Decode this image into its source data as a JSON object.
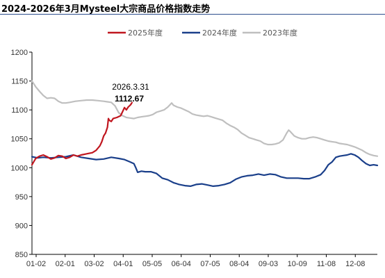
{
  "chart_data": {
    "type": "line",
    "title": "2024-2026年3月Mysteel大宗商品价格指数走势",
    "ylim": [
      850,
      1200
    ],
    "yticks": [
      850,
      900,
      950,
      1000,
      1050,
      1100,
      1150,
      1200
    ],
    "xtick_labels": [
      "01-02",
      "02-01",
      "03-02",
      "04-01",
      "05-05",
      "06-04",
      "07-05",
      "08-04",
      "09-03",
      "10-09",
      "11-08",
      "12-08"
    ],
    "x_range": [
      0,
      366
    ],
    "legend_position": "top",
    "annotation": {
      "date": "2026.3.31",
      "value": "1112.67"
    },
    "series": [
      {
        "name": "2025年度",
        "color": "#c0161f",
        "points": [
          [
            0,
            1005
          ],
          [
            4,
            1016
          ],
          [
            8,
            1020
          ],
          [
            12,
            1022
          ],
          [
            16,
            1019
          ],
          [
            20,
            1015
          ],
          [
            24,
            1017
          ],
          [
            28,
            1021
          ],
          [
            32,
            1020
          ],
          [
            36,
            1016
          ],
          [
            40,
            1018
          ],
          [
            44,
            1022
          ],
          [
            48,
            1020
          ],
          [
            52,
            1022
          ],
          [
            58,
            1024
          ],
          [
            64,
            1026
          ],
          [
            68,
            1030
          ],
          [
            72,
            1038
          ],
          [
            74,
            1045
          ],
          [
            76,
            1055
          ],
          [
            78,
            1060
          ],
          [
            80,
            1070
          ],
          [
            81,
            1085
          ],
          [
            82,
            1082
          ],
          [
            84,
            1080
          ],
          [
            86,
            1085
          ],
          [
            90,
            1087
          ],
          [
            94,
            1090
          ],
          [
            96,
            1097
          ],
          [
            98,
            1104
          ],
          [
            100,
            1100
          ],
          [
            102,
            1105
          ],
          [
            104,
            1108
          ],
          [
            105,
            1110
          ],
          [
            106,
            1112.67
          ]
        ]
      },
      {
        "name": "2024年度",
        "color": "#1a3f8a",
        "points": [
          [
            0,
            1019
          ],
          [
            6,
            1017
          ],
          [
            12,
            1018
          ],
          [
            20,
            1017
          ],
          [
            28,
            1018
          ],
          [
            36,
            1019
          ],
          [
            44,
            1022
          ],
          [
            52,
            1018
          ],
          [
            60,
            1016
          ],
          [
            68,
            1014
          ],
          [
            76,
            1015
          ],
          [
            84,
            1018
          ],
          [
            92,
            1016
          ],
          [
            98,
            1014
          ],
          [
            104,
            1010
          ],
          [
            108,
            1007
          ],
          [
            110,
            1000
          ],
          [
            112,
            992
          ],
          [
            116,
            994
          ],
          [
            120,
            993
          ],
          [
            126,
            993
          ],
          [
            132,
            990
          ],
          [
            138,
            982
          ],
          [
            144,
            979
          ],
          [
            150,
            974
          ],
          [
            156,
            971
          ],
          [
            162,
            969
          ],
          [
            168,
            968
          ],
          [
            174,
            971
          ],
          [
            180,
            972
          ],
          [
            186,
            970
          ],
          [
            192,
            968
          ],
          [
            198,
            969
          ],
          [
            204,
            971
          ],
          [
            210,
            974
          ],
          [
            216,
            980
          ],
          [
            222,
            984
          ],
          [
            228,
            986
          ],
          [
            234,
            987
          ],
          [
            240,
            989
          ],
          [
            246,
            987
          ],
          [
            252,
            989
          ],
          [
            258,
            988
          ],
          [
            264,
            984
          ],
          [
            270,
            982
          ],
          [
            276,
            982
          ],
          [
            282,
            982
          ],
          [
            288,
            981
          ],
          [
            294,
            981
          ],
          [
            300,
            984
          ],
          [
            306,
            988
          ],
          [
            310,
            995
          ],
          [
            314,
            1005
          ],
          [
            318,
            1010
          ],
          [
            322,
            1018
          ],
          [
            326,
            1020
          ],
          [
            330,
            1021
          ],
          [
            334,
            1022
          ],
          [
            338,
            1024
          ],
          [
            342,
            1022
          ],
          [
            346,
            1018
          ],
          [
            350,
            1012
          ],
          [
            354,
            1007
          ],
          [
            358,
            1004
          ],
          [
            362,
            1005
          ],
          [
            366,
            1004
          ]
        ]
      },
      {
        "name": "2023年度",
        "color": "#bfbfbf",
        "points": [
          [
            0,
            1150
          ],
          [
            4,
            1140
          ],
          [
            8,
            1132
          ],
          [
            12,
            1125
          ],
          [
            16,
            1120
          ],
          [
            20,
            1121
          ],
          [
            24,
            1120
          ],
          [
            28,
            1115
          ],
          [
            32,
            1112
          ],
          [
            36,
            1112
          ],
          [
            40,
            1113
          ],
          [
            46,
            1115
          ],
          [
            52,
            1116
          ],
          [
            58,
            1117
          ],
          [
            64,
            1117
          ],
          [
            70,
            1116
          ],
          [
            76,
            1115
          ],
          [
            80,
            1114
          ],
          [
            84,
            1113
          ],
          [
            88,
            1107
          ],
          [
            92,
            1095
          ],
          [
            96,
            1090
          ],
          [
            100,
            1087
          ],
          [
            104,
            1086
          ],
          [
            108,
            1085
          ],
          [
            112,
            1087
          ],
          [
            116,
            1088
          ],
          [
            120,
            1089
          ],
          [
            124,
            1090
          ],
          [
            128,
            1092
          ],
          [
            132,
            1096
          ],
          [
            136,
            1098
          ],
          [
            140,
            1100
          ],
          [
            144,
            1105
          ],
          [
            148,
            1112
          ],
          [
            150,
            1108
          ],
          [
            154,
            1105
          ],
          [
            158,
            1103
          ],
          [
            162,
            1100
          ],
          [
            166,
            1097
          ],
          [
            170,
            1093
          ],
          [
            174,
            1091
          ],
          [
            178,
            1090
          ],
          [
            182,
            1089
          ],
          [
            186,
            1090
          ],
          [
            190,
            1088
          ],
          [
            194,
            1086
          ],
          [
            198,
            1084
          ],
          [
            202,
            1082
          ],
          [
            206,
            1077
          ],
          [
            210,
            1073
          ],
          [
            214,
            1070
          ],
          [
            218,
            1066
          ],
          [
            222,
            1060
          ],
          [
            226,
            1056
          ],
          [
            230,
            1052
          ],
          [
            234,
            1050
          ],
          [
            238,
            1048
          ],
          [
            242,
            1046
          ],
          [
            246,
            1042
          ],
          [
            250,
            1040
          ],
          [
            254,
            1040
          ],
          [
            258,
            1041
          ],
          [
            262,
            1043
          ],
          [
            266,
            1048
          ],
          [
            270,
            1060
          ],
          [
            272,
            1065
          ],
          [
            274,
            1062
          ],
          [
            278,
            1055
          ],
          [
            282,
            1052
          ],
          [
            286,
            1050
          ],
          [
            290,
            1050
          ],
          [
            294,
            1052
          ],
          [
            298,
            1053
          ],
          [
            302,
            1052
          ],
          [
            306,
            1050
          ],
          [
            310,
            1048
          ],
          [
            314,
            1046
          ],
          [
            318,
            1045
          ],
          [
            322,
            1044
          ],
          [
            326,
            1042
          ],
          [
            330,
            1041
          ],
          [
            334,
            1040
          ],
          [
            338,
            1038
          ],
          [
            342,
            1036
          ],
          [
            346,
            1033
          ],
          [
            350,
            1030
          ],
          [
            354,
            1026
          ],
          [
            358,
            1023
          ],
          [
            362,
            1021
          ],
          [
            366,
            1020
          ]
        ]
      }
    ]
  }
}
